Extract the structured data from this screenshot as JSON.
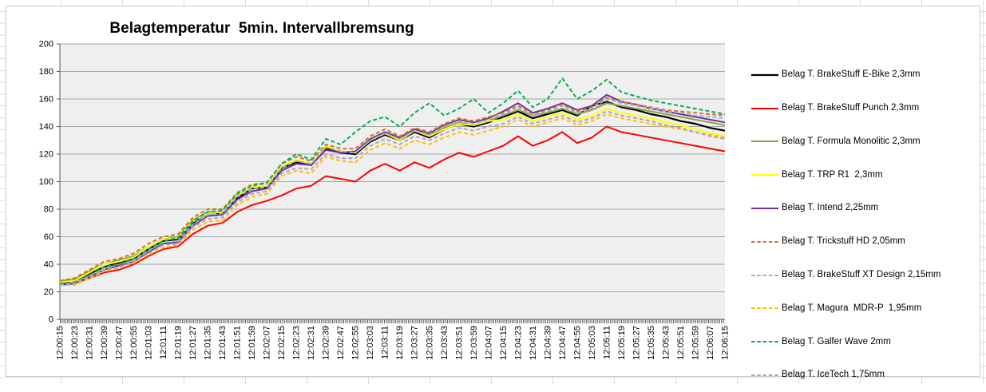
{
  "chart_data": {
    "type": "line",
    "title": "Belagtemperatur  5min. Intervallbremsung",
    "xlabel": "",
    "ylabel": "",
    "ylim": [
      0,
      200
    ],
    "y_step": 20,
    "y_ticks": [
      "0",
      "20",
      "40",
      "60",
      "80",
      "100",
      "120",
      "140",
      "160",
      "180",
      "200"
    ],
    "grid": true,
    "legend_position": "right",
    "plot_bg": "#efefef",
    "gridline_color": "#a6a6a6",
    "axis_color": "#595959",
    "categories": [
      "12:00:15",
      "12:00:23",
      "12:00:31",
      "12:00:39",
      "12:00:47",
      "12:00:55",
      "12:01:03",
      "12:01:11",
      "12:01:19",
      "12:01:27",
      "12:01:35",
      "12:01:43",
      "12:01:51",
      "12:01:59",
      "12:02:07",
      "12:02:15",
      "12:02:23",
      "12:02:31",
      "12:02:39",
      "12:02:47",
      "12:02:55",
      "12:03:03",
      "12:03:11",
      "12:03:19",
      "12:03:27",
      "12:03:35",
      "12:03:43",
      "12:03:51",
      "12:03:59",
      "12:04:07",
      "12:04:15",
      "12:04:23",
      "12:04:31",
      "12:04:39",
      "12:04:47",
      "12:04:55",
      "12:05:03",
      "12:05:11",
      "12:05:19",
      "12:05:27",
      "12:05:35",
      "12:05:43",
      "12:05:51",
      "12:05:59",
      "12:06:07",
      "12:06:15"
    ],
    "series": [
      {
        "name": "Belag T. BrakeStuff E-Bike 2,3mm",
        "color": "#000000",
        "line_style": "solid",
        "values": [
          27,
          28,
          33,
          38,
          41,
          44,
          51,
          57,
          58,
          70,
          77,
          77,
          88,
          95,
          96,
          110,
          114,
          112,
          124,
          121,
          120,
          129,
          134,
          130,
          136,
          132,
          138,
          142,
          140,
          143,
          147,
          151,
          146,
          149,
          152,
          148,
          155,
          158,
          154,
          152,
          149,
          147,
          144,
          142,
          139,
          137
        ]
      },
      {
        "name": "Belag T. BrakeStuff Punch 2,3mm",
        "color": "#ff0000",
        "line_style": "solid",
        "values": [
          26,
          26,
          30,
          34,
          36,
          40,
          46,
          51,
          53,
          62,
          68,
          70,
          78,
          83,
          86,
          90,
          95,
          97,
          104,
          102,
          100,
          108,
          113,
          108,
          114,
          110,
          116,
          121,
          118,
          122,
          126,
          133,
          126,
          130,
          136,
          128,
          132,
          140,
          136,
          134,
          132,
          130,
          128,
          126,
          124,
          122
        ]
      },
      {
        "name": "Belag T. Formula Monolitic 2,3mm",
        "color": "#8ca03f",
        "line_style": "solid",
        "values": [
          28,
          29,
          35,
          40,
          43,
          46,
          53,
          58,
          60,
          72,
          78,
          78,
          90,
          96,
          97,
          111,
          115,
          113,
          125,
          122,
          121,
          130,
          135,
          131,
          137,
          134,
          139,
          143,
          141,
          144,
          148,
          152,
          148,
          150,
          153,
          149,
          152,
          157,
          155,
          153,
          151,
          149,
          147,
          145,
          143,
          141
        ]
      },
      {
        "name": "Belag T. TRP R1  2,3mm",
        "color": "#ffff00",
        "line_style": "solid",
        "values": [
          27,
          28,
          34,
          40,
          42,
          45,
          53,
          58,
          59,
          71,
          77,
          78,
          90,
          96,
          97,
          111,
          116,
          113,
          126,
          122,
          121,
          130,
          135,
          130,
          137,
          133,
          138,
          142,
          141,
          144,
          145,
          149,
          144,
          147,
          150,
          145,
          148,
          153,
          150,
          148,
          146,
          143,
          141,
          138,
          135,
          133
        ]
      },
      {
        "name": "Belag T. Intend 2,25mm",
        "color": "#7030a0",
        "line_style": "solid",
        "values": [
          25,
          26,
          31,
          36,
          39,
          42,
          49,
          55,
          56,
          68,
          75,
          76,
          87,
          93,
          95,
          108,
          113,
          112,
          123,
          121,
          122,
          131,
          136,
          132,
          138,
          135,
          141,
          145,
          143,
          146,
          151,
          157,
          150,
          153,
          157,
          152,
          155,
          163,
          158,
          156,
          153,
          151,
          149,
          147,
          145,
          143
        ]
      },
      {
        "name": "Belag T. Trickstuff HD 2,05mm",
        "color": "#d9722b",
        "line_style": "dashed",
        "values": [
          28,
          30,
          36,
          42,
          44,
          48,
          55,
          60,
          62,
          74,
          80,
          80,
          92,
          98,
          99,
          113,
          118,
          115,
          127,
          124,
          124,
          133,
          138,
          133,
          139,
          136,
          142,
          146,
          144,
          147,
          150,
          155,
          149,
          152,
          156,
          151,
          154,
          161,
          158,
          156,
          154,
          152,
          151,
          150,
          149,
          148
        ]
      },
      {
        "name": "Belag T. BrakeStuff XT Design 2,15mm",
        "color": "#95b3d7",
        "line_style": "dashed",
        "values": [
          26,
          27,
          32,
          38,
          40,
          43,
          50,
          56,
          57,
          69,
          76,
          77,
          89,
          95,
          96,
          110,
          115,
          113,
          125,
          122,
          121,
          130,
          135,
          131,
          137,
          134,
          140,
          144,
          142,
          145,
          149,
          154,
          148,
          151,
          155,
          150,
          153,
          160,
          157,
          155,
          153,
          151,
          150,
          148,
          147,
          146
        ]
      },
      {
        "name": "Belag T. Magura  MDR-P  1,95mm",
        "color": "#ffc000",
        "line_style": "dashed",
        "values": [
          25,
          25,
          30,
          35,
          37,
          41,
          47,
          52,
          54,
          65,
          71,
          72,
          83,
          89,
          91,
          104,
          108,
          106,
          118,
          115,
          114,
          123,
          128,
          124,
          130,
          127,
          132,
          136,
          134,
          137,
          140,
          145,
          140,
          143,
          146,
          141,
          144,
          149,
          146,
          144,
          142,
          140,
          138,
          136,
          134,
          132
        ]
      },
      {
        "name": "Belag T. Galfer Wave 2mm",
        "color": "#00b050",
        "line_style": "dashed",
        "values": [
          26,
          27,
          32,
          38,
          40,
          44,
          51,
          57,
          59,
          71,
          78,
          79,
          91,
          97,
          99,
          113,
          120,
          116,
          131,
          127,
          136,
          144,
          147,
          140,
          150,
          157,
          148,
          153,
          160,
          150,
          157,
          166,
          154,
          160,
          175,
          160,
          166,
          174,
          165,
          162,
          159,
          157,
          155,
          153,
          151,
          149
        ]
      },
      {
        "name": "Belag T. IceTech 1,75mm",
        "color": "#b1a0c7",
        "line_style": "dashed",
        "values": [
          25,
          26,
          31,
          36,
          38,
          42,
          48,
          54,
          55,
          67,
          73,
          74,
          85,
          91,
          93,
          106,
          110,
          109,
          120,
          117,
          117,
          126,
          131,
          127,
          133,
          130,
          135,
          139,
          137,
          140,
          142,
          147,
          142,
          145,
          148,
          143,
          146,
          151,
          148,
          146,
          144,
          141,
          139,
          136,
          133,
          131
        ]
      }
    ]
  }
}
